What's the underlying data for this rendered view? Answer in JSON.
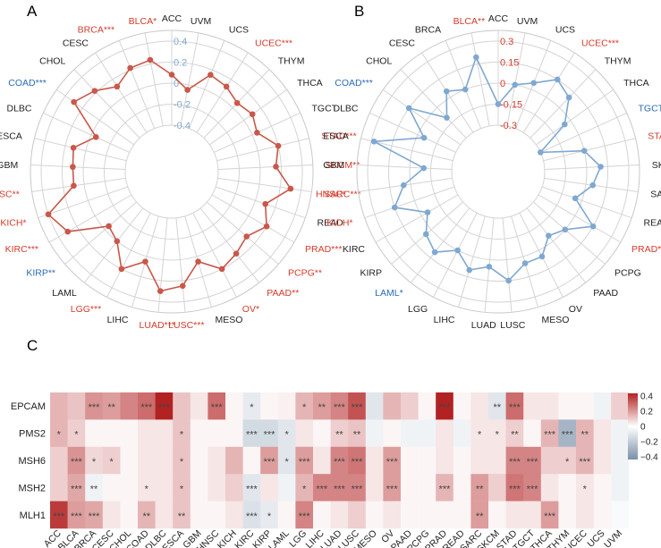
{
  "chart_data": [
    {
      "type": "radar",
      "panel": "A",
      "rlim": [
        -0.4,
        0.4
      ],
      "r_ticks": [
        "0.4",
        "0.2",
        "0",
        "-0.2",
        "-0.4"
      ],
      "categories": [
        "ACC",
        "UVM",
        "UCS",
        "UCEC***",
        "THYM",
        "THCA",
        "TGCT",
        "STAD***",
        "SKCM**",
        "SARC***",
        "READ",
        "PRAD***",
        "PCPG**",
        "PAAD**",
        "OV*",
        "MESO",
        "LUSC***",
        "LUAD***",
        "LIHC",
        "LGG***",
        "LAML",
        "KIRP**",
        "KIRC***",
        "KICH*",
        "HNSC**",
        "GBM",
        "ESCA",
        "DLBC",
        "COAD***",
        "CHOL",
        "CESC",
        "BRCA***",
        "BLCA*"
      ],
      "label_colors": [
        "black",
        "black",
        "black",
        "red",
        "black",
        "black",
        "black",
        "red",
        "red",
        "red",
        "black",
        "red",
        "red",
        "red",
        "red",
        "black",
        "red",
        "red",
        "black",
        "red",
        "black",
        "blue",
        "red",
        "red",
        "red",
        "black",
        "black",
        "black",
        "blue",
        "black",
        "black",
        "red",
        "red"
      ],
      "values": [
        0.08,
        -0.05,
        0.15,
        0.12,
        0.06,
        0.1,
        0.05,
        0.2,
        0.15,
        0.3,
        0.1,
        0.2,
        0.1,
        0.15,
        0.2,
        0.05,
        0.25,
        0.3,
        0.05,
        0.2,
        0.0,
        -0.05,
        0.3,
        0.4,
        0.1,
        0.1,
        0.12,
        -0.05,
        0.3,
        0.22,
        0.12,
        0.22,
        0.24
      ]
    },
    {
      "type": "radar",
      "panel": "B",
      "rlim": [
        -0.3,
        0.3
      ],
      "r_ticks": [
        "0.3",
        "0.15",
        "0",
        "-0.15",
        "-0.3"
      ],
      "categories": [
        "ACC",
        "UVM",
        "UCS",
        "UCEC***",
        "THYM",
        "THCA",
        "TGCT***",
        "STAD*",
        "SKCM",
        "SARC",
        "READ",
        "PRAD*",
        "PCPG",
        "PAAD",
        "OV",
        "MESO",
        "LUSC",
        "LUAD",
        "LIHC",
        "LGG",
        "LAML*",
        "KIRP",
        "KIRC",
        "KICH*",
        "HNSC*",
        "GBM",
        "ESCA",
        "DLBC",
        "COAD***",
        "CHOL",
        "CESC",
        "BRCA",
        "BLCA**"
      ],
      "label_colors": [
        "black",
        "black",
        "black",
        "red",
        "black",
        "black",
        "blue",
        "red",
        "black",
        "black",
        "black",
        "red",
        "black",
        "black",
        "black",
        "black",
        "black",
        "black",
        "black",
        "black",
        "blue",
        "black",
        "black",
        "red",
        "red",
        "black",
        "black",
        "black",
        "blue",
        "black",
        "black",
        "black",
        "red"
      ],
      "values": [
        -0.15,
        0.0,
        0.05,
        0.15,
        0.1,
        -0.05,
        -0.3,
        0.0,
        0.1,
        0.05,
        -0.05,
        0.15,
        0.0,
        -0.05,
        0.05,
        0.05,
        0.15,
        0.05,
        0.1,
        0.0,
        0.1,
        0.05,
        -0.05,
        0.15,
        0.05,
        -0.1,
        0.28,
        -0.05,
        0.15,
        -0.1,
        0.05,
        0.0,
        0.2
      ]
    },
    {
      "type": "heatmap",
      "panel": "C",
      "columns": [
        "ACC",
        "BLCA",
        "BRCA",
        "CESC",
        "CHOL",
        "COAD",
        "DLBC",
        "ESCA",
        "GBM",
        "HNSC",
        "KICH",
        "KIRC",
        "KIRP",
        "LAML",
        "LGG",
        "LIHC",
        "LUAD",
        "LUSC",
        "MESO",
        "OV",
        "PAAD",
        "PCPG",
        "PRAD",
        "READ",
        "SARC",
        "SKCM",
        "STAD",
        "TGCT",
        "THCA",
        "THYM",
        "UCEC",
        "UCS",
        "UVM"
      ],
      "rows": [
        "EPCAM",
        "PMS2",
        "MSH6",
        "MSH2",
        "MLH1"
      ],
      "values": [
        [
          0.15,
          0.12,
          0.22,
          0.2,
          0.25,
          0.3,
          0.45,
          0.12,
          0.05,
          0.3,
          0.02,
          -0.08,
          0.02,
          0.03,
          0.15,
          0.2,
          0.25,
          0.35,
          -0.1,
          0.15,
          0.1,
          0.02,
          0.45,
          0.02,
          0.05,
          -0.1,
          0.3,
          0.05,
          0.05,
          0.02,
          0.02,
          -0.05,
          0.1
        ],
        [
          0.15,
          0.1,
          0.02,
          0.02,
          0.02,
          0.05,
          0.05,
          0.12,
          0.02,
          0.02,
          0.02,
          -0.15,
          -0.15,
          -0.1,
          0.05,
          0.02,
          0.1,
          0.12,
          -0.05,
          0.02,
          -0.05,
          -0.05,
          0.05,
          -0.05,
          0.05,
          0.05,
          0.1,
          0.02,
          0.15,
          -0.3,
          0.15,
          0.05,
          -0.05
        ],
        [
          0.1,
          0.22,
          0.08,
          0.1,
          0.02,
          0.05,
          0.05,
          0.12,
          0.02,
          0.05,
          0.15,
          0.02,
          0.2,
          -0.1,
          0.2,
          0.05,
          0.25,
          0.28,
          0.05,
          0.2,
          0.02,
          0.02,
          0.05,
          0.02,
          0.05,
          0.05,
          0.25,
          0.25,
          0.1,
          0.1,
          0.15,
          0.05,
          -0.05
        ],
        [
          0.1,
          0.18,
          -0.05,
          0.02,
          0.02,
          0.05,
          0.05,
          0.12,
          0.02,
          0.05,
          0.1,
          -0.1,
          0.05,
          -0.05,
          0.15,
          0.25,
          0.25,
          0.25,
          0.05,
          0.2,
          0.02,
          0.02,
          0.15,
          0.02,
          0.2,
          0.1,
          0.28,
          0.25,
          0.05,
          0.02,
          0.05,
          0.02,
          -0.05
        ],
        [
          0.4,
          0.2,
          0.18,
          0.05,
          0.02,
          0.15,
          0.05,
          0.12,
          0.02,
          0.02,
          0.05,
          -0.12,
          -0.08,
          0.02,
          0.25,
          0.02,
          0.05,
          0.1,
          0.02,
          0.05,
          0.02,
          0.02,
          0.02,
          0.02,
          0.2,
          0.02,
          0.05,
          0.05,
          0.2,
          0.02,
          0.05,
          0.02,
          -0.02
        ]
      ],
      "stars": [
        [
          "",
          "",
          "***",
          "**",
          "",
          "***",
          "***",
          "",
          "",
          "***",
          "",
          "*",
          "",
          "",
          "*",
          "**",
          "***",
          "***",
          "",
          "",
          "",
          "",
          "***",
          "",
          "",
          "**",
          "***",
          "",
          "",
          "",
          "",
          "",
          ""
        ],
        [
          "*",
          "*",
          "",
          "",
          "",
          "",
          "",
          "*",
          "",
          "",
          "",
          "***",
          "***",
          "*",
          "",
          "",
          "**",
          "**",
          "",
          "",
          "",
          "",
          "",
          "",
          "*",
          "*",
          "**",
          "",
          "***",
          "***",
          "**",
          "",
          ""
        ],
        [
          "",
          "***",
          "*",
          "*",
          "",
          "",
          "",
          "*",
          "",
          "",
          "",
          "",
          "***",
          "*",
          "***",
          "",
          "***",
          "***",
          "",
          "***",
          "",
          "",
          "",
          "",
          "",
          "",
          "***",
          "***",
          "",
          "*",
          "***",
          "",
          ""
        ],
        [
          "",
          "***",
          "**",
          "",
          "",
          "*",
          "",
          "*",
          "",
          "",
          "",
          "***",
          "",
          "",
          "*",
          "***",
          "***",
          "***",
          "",
          "***",
          "",
          "",
          "***",
          "",
          "**",
          "",
          "***",
          "***",
          "",
          "",
          "*",
          "",
          ""
        ],
        [
          "***",
          "***",
          "***",
          "",
          "",
          "**",
          "",
          "**",
          "",
          "",
          "",
          "***",
          "*",
          "",
          "***",
          "",
          "",
          "",
          "",
          "",
          "",
          "",
          "",
          "",
          "**",
          "",
          "",
          "",
          "***",
          "",
          "",
          "",
          ""
        ]
      ],
      "colorbar": {
        "ticks": [
          "0.4",
          "0.2",
          "0",
          "−0.2",
          "−0.4"
        ],
        "range": [
          -0.45,
          0.45
        ]
      }
    }
  ],
  "panels": {
    "a": "A",
    "b": "B",
    "c": "C"
  },
  "colors": {
    "red_line": "#c9574a",
    "blue_line": "#7fa8d1",
    "label_red": "#d33b2b",
    "label_blue": "#2b6cb3",
    "tick_blue": "#7fa8d1",
    "tick_red": "#d33b2b"
  }
}
